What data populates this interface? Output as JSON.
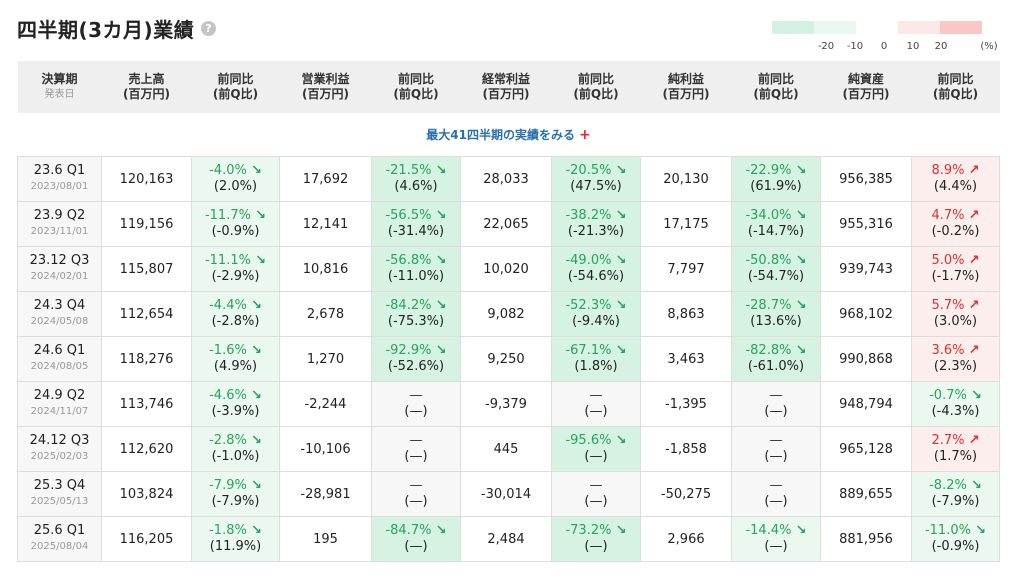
{
  "title": "四半期(3カ月)業績",
  "help_icon": "question-circle-icon",
  "help_glyph": "?",
  "legend": {
    "colors": [
      "#d4f1e2",
      "#eaf8f0",
      "#ffffff",
      "#fde8e8",
      "#f9c8c4"
    ],
    "labels": [
      "-20",
      "-10",
      "0",
      "10",
      "20",
      "(%)"
    ]
  },
  "headers": [
    {
      "l1": "決算期",
      "l2": "発表日"
    },
    {
      "l1": "売上高",
      "l2": "(百万円)"
    },
    {
      "l1": "前同比",
      "l2": "(前Q比)"
    },
    {
      "l1": "営業利益",
      "l2": "(百万円)"
    },
    {
      "l1": "前同比",
      "l2": "(前Q比)"
    },
    {
      "l1": "経常利益",
      "l2": "(百万円)"
    },
    {
      "l1": "前同比",
      "l2": "(前Q比)"
    },
    {
      "l1": "純利益",
      "l2": "(百万円)"
    },
    {
      "l1": "前同比",
      "l2": "(前Q比)"
    },
    {
      "l1": "純資産",
      "l2": "(百万円)"
    },
    {
      "l1": "前同比",
      "l2": "(前Q比)"
    }
  ],
  "more_link": "最大41四半期の実績をみる",
  "more_plus": "+",
  "colors": {
    "up": "#e0302b",
    "down": "#25a45a",
    "link": "#2a6fad"
  },
  "rows": [
    {
      "period": "23.6 Q1",
      "date": "2023/08/01",
      "sales": "120,163",
      "sales_yoy": "-4.0%",
      "sales_yoy_dir": "down",
      "sales_qoq": "(2.0%)",
      "sales_bg": "g-light",
      "op": "17,692",
      "op_yoy": "-21.5%",
      "op_yoy_dir": "down",
      "op_qoq": "(4.6%)",
      "op_bg": "g-strong",
      "ord": "28,033",
      "ord_yoy": "-20.5%",
      "ord_yoy_dir": "down",
      "ord_qoq": "(47.5%)",
      "ord_bg": "g-strong",
      "net": "20,130",
      "net_yoy": "-22.9%",
      "net_yoy_dir": "down",
      "net_qoq": "(61.9%)",
      "net_bg": "g-strong",
      "assets": "956,385",
      "assets_yoy": "8.9%",
      "assets_yoy_dir": "up",
      "assets_qoq": "(4.4%)",
      "assets_bg": "r-light"
    },
    {
      "period": "23.9 Q2",
      "date": "2023/11/01",
      "sales": "119,156",
      "sales_yoy": "-11.7%",
      "sales_yoy_dir": "down",
      "sales_qoq": "(-0.9%)",
      "sales_bg": "g-light",
      "op": "12,141",
      "op_yoy": "-56.5%",
      "op_yoy_dir": "down",
      "op_qoq": "(-31.4%)",
      "op_bg": "g-strong",
      "ord": "22,065",
      "ord_yoy": "-38.2%",
      "ord_yoy_dir": "down",
      "ord_qoq": "(-21.3%)",
      "ord_bg": "g-strong",
      "net": "17,175",
      "net_yoy": "-34.0%",
      "net_yoy_dir": "down",
      "net_qoq": "(-14.7%)",
      "net_bg": "g-strong",
      "assets": "955,316",
      "assets_yoy": "4.7%",
      "assets_yoy_dir": "up",
      "assets_qoq": "(-0.2%)",
      "assets_bg": "r-light"
    },
    {
      "period": "23.12 Q3",
      "date": "2024/02/01",
      "sales": "115,807",
      "sales_yoy": "-11.1%",
      "sales_yoy_dir": "down",
      "sales_qoq": "(-2.9%)",
      "sales_bg": "g-light",
      "op": "10,816",
      "op_yoy": "-56.8%",
      "op_yoy_dir": "down",
      "op_qoq": "(-11.0%)",
      "op_bg": "g-strong",
      "ord": "10,020",
      "ord_yoy": "-49.0%",
      "ord_yoy_dir": "down",
      "ord_qoq": "(-54.6%)",
      "ord_bg": "g-strong",
      "net": "7,797",
      "net_yoy": "-50.8%",
      "net_yoy_dir": "down",
      "net_qoq": "(-54.7%)",
      "net_bg": "g-strong",
      "assets": "939,743",
      "assets_yoy": "5.0%",
      "assets_yoy_dir": "up",
      "assets_qoq": "(-1.7%)",
      "assets_bg": "r-light"
    },
    {
      "period": "24.3 Q4",
      "date": "2024/05/08",
      "sales": "112,654",
      "sales_yoy": "-4.4%",
      "sales_yoy_dir": "down",
      "sales_qoq": "(-2.8%)",
      "sales_bg": "g-light",
      "op": "2,678",
      "op_yoy": "-84.2%",
      "op_yoy_dir": "down",
      "op_qoq": "(-75.3%)",
      "op_bg": "g-strong",
      "ord": "9,082",
      "ord_yoy": "-52.3%",
      "ord_yoy_dir": "down",
      "ord_qoq": "(-9.4%)",
      "ord_bg": "g-strong",
      "net": "8,863",
      "net_yoy": "-28.7%",
      "net_yoy_dir": "down",
      "net_qoq": "(13.6%)",
      "net_bg": "g-strong",
      "assets": "968,102",
      "assets_yoy": "5.7%",
      "assets_yoy_dir": "up",
      "assets_qoq": "(3.0%)",
      "assets_bg": "r-light"
    },
    {
      "period": "24.6 Q1",
      "date": "2024/08/05",
      "sales": "118,276",
      "sales_yoy": "-1.6%",
      "sales_yoy_dir": "down",
      "sales_qoq": "(4.9%)",
      "sales_bg": "g-light",
      "op": "1,270",
      "op_yoy": "-92.9%",
      "op_yoy_dir": "down",
      "op_qoq": "(-52.6%)",
      "op_bg": "g-strong",
      "ord": "9,250",
      "ord_yoy": "-67.1%",
      "ord_yoy_dir": "down",
      "ord_qoq": "(1.8%)",
      "ord_bg": "g-strong",
      "net": "3,463",
      "net_yoy": "-82.8%",
      "net_yoy_dir": "down",
      "net_qoq": "(-61.0%)",
      "net_bg": "g-strong",
      "assets": "990,868",
      "assets_yoy": "3.6%",
      "assets_yoy_dir": "up",
      "assets_qoq": "(2.3%)",
      "assets_bg": "r-light"
    },
    {
      "period": "24.9 Q2",
      "date": "2024/11/07",
      "sales": "113,746",
      "sales_yoy": "-4.6%",
      "sales_yoy_dir": "down",
      "sales_qoq": "(-3.9%)",
      "sales_bg": "g-light",
      "op": "-2,244",
      "op_yoy": "—",
      "op_yoy_dir": "none",
      "op_qoq": "(—)",
      "op_bg": "gray",
      "ord": "-9,379",
      "ord_yoy": "—",
      "ord_yoy_dir": "none",
      "ord_qoq": "(—)",
      "ord_bg": "gray",
      "net": "-1,395",
      "net_yoy": "—",
      "net_yoy_dir": "none",
      "net_qoq": "(—)",
      "net_bg": "gray",
      "assets": "948,794",
      "assets_yoy": "-0.7%",
      "assets_yoy_dir": "down",
      "assets_qoq": "(-4.3%)",
      "assets_bg": "g-light"
    },
    {
      "period": "24.12 Q3",
      "date": "2025/02/03",
      "sales": "112,620",
      "sales_yoy": "-2.8%",
      "sales_yoy_dir": "down",
      "sales_qoq": "(-1.0%)",
      "sales_bg": "g-light",
      "op": "-10,106",
      "op_yoy": "—",
      "op_yoy_dir": "none",
      "op_qoq": "(—)",
      "op_bg": "gray",
      "ord": "445",
      "ord_yoy": "-95.6%",
      "ord_yoy_dir": "down",
      "ord_qoq": "(—)",
      "ord_bg": "g-strong",
      "net": "-1,858",
      "net_yoy": "—",
      "net_yoy_dir": "none",
      "net_qoq": "(—)",
      "net_bg": "gray",
      "assets": "965,128",
      "assets_yoy": "2.7%",
      "assets_yoy_dir": "up",
      "assets_qoq": "(1.7%)",
      "assets_bg": "r-light"
    },
    {
      "period": "25.3 Q4",
      "date": "2025/05/13",
      "sales": "103,824",
      "sales_yoy": "-7.9%",
      "sales_yoy_dir": "down",
      "sales_qoq": "(-7.9%)",
      "sales_bg": "g-light",
      "op": "-28,981",
      "op_yoy": "—",
      "op_yoy_dir": "none",
      "op_qoq": "(—)",
      "op_bg": "gray",
      "ord": "-30,014",
      "ord_yoy": "—",
      "ord_yoy_dir": "none",
      "ord_qoq": "(—)",
      "ord_bg": "gray",
      "net": "-50,275",
      "net_yoy": "—",
      "net_yoy_dir": "none",
      "net_qoq": "(—)",
      "net_bg": "gray",
      "assets": "889,655",
      "assets_yoy": "-8.2%",
      "assets_yoy_dir": "down",
      "assets_qoq": "(-7.9%)",
      "assets_bg": "g-light"
    },
    {
      "period": "25.6 Q1",
      "date": "2025/08/04",
      "sales": "116,205",
      "sales_yoy": "-1.8%",
      "sales_yoy_dir": "down",
      "sales_qoq": "(11.9%)",
      "sales_bg": "g-light",
      "op": "195",
      "op_yoy": "-84.7%",
      "op_yoy_dir": "down",
      "op_qoq": "(—)",
      "op_bg": "g-strong",
      "ord": "2,484",
      "ord_yoy": "-73.2%",
      "ord_yoy_dir": "down",
      "ord_qoq": "(—)",
      "ord_bg": "g-strong",
      "net": "2,966",
      "net_yoy": "-14.4%",
      "net_yoy_dir": "down",
      "net_qoq": "(—)",
      "net_bg": "g-light",
      "assets": "881,956",
      "assets_yoy": "-11.0%",
      "assets_yoy_dir": "down",
      "assets_qoq": "(-0.9%)",
      "assets_bg": "g-light"
    }
  ]
}
